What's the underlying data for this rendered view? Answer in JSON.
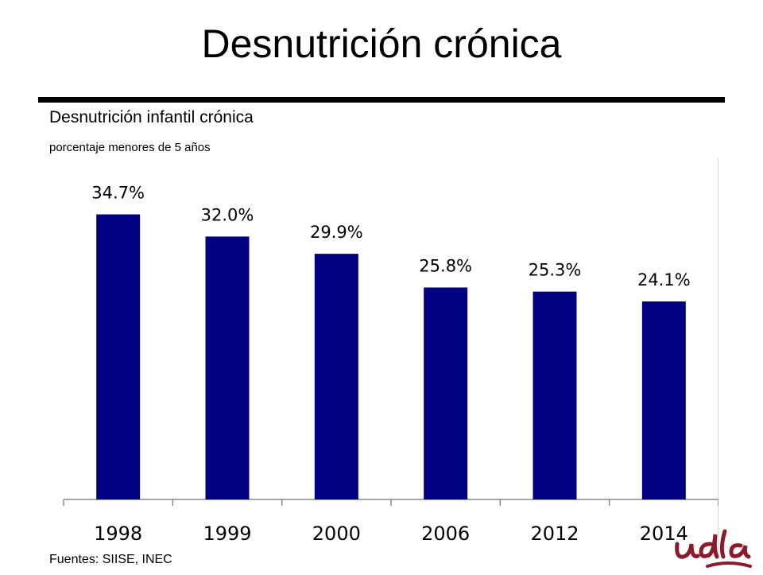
{
  "title": "Desnutrición crónica",
  "chart_data": {
    "type": "bar",
    "title": "Desnutrición infantil crónica",
    "subtitle": "porcentaje menores de 5 años",
    "categories": [
      "1998",
      "1999",
      "2000",
      "2006",
      "2012",
      "2014"
    ],
    "values": [
      34.7,
      32.0,
      29.9,
      25.8,
      25.3,
      24.1
    ],
    "data_labels": [
      "34.7%",
      "32.0%",
      "29.9%",
      "25.8%",
      "25.3%",
      "24.1%"
    ],
    "bar_color": "#000080",
    "ylim": [
      0,
      40
    ],
    "grid": false,
    "legend": "none"
  },
  "source": "Fuentes: SIISE, INEC",
  "logo": {
    "icon": "udla-logo",
    "color": "#8b1a2b"
  }
}
